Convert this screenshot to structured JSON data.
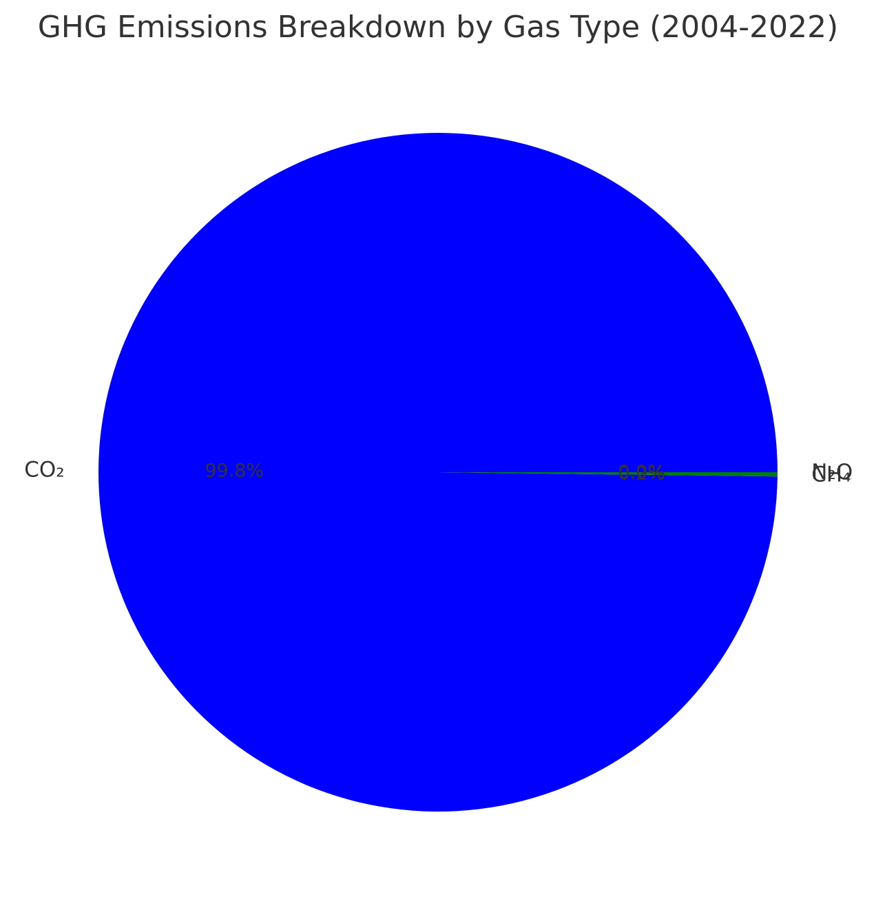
{
  "chart_data": {
    "type": "pie",
    "title": "GHG Emissions Breakdown by Gas Type (2004-2022)",
    "slices": [
      {
        "label": "CO₂",
        "value": 99.8,
        "pct_label": "99.8%",
        "color": "#0000ff"
      },
      {
        "label": "CH₄",
        "value": 0.2,
        "pct_label": "0.2%",
        "color": "#008000"
      },
      {
        "label": "N₂O",
        "value": 0.0,
        "pct_label": "0.0%",
        "color": "#ff0000"
      }
    ],
    "start_angle_deg": 0,
    "direction": "counterclockwise",
    "legend": "none",
    "text_color": "#333333"
  }
}
